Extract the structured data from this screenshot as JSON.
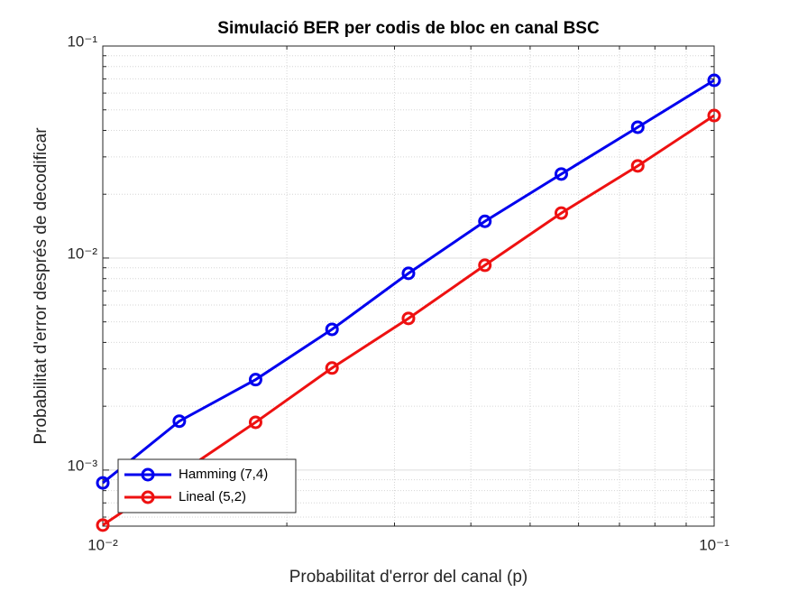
{
  "chart_data": {
    "type": "line",
    "title": "Simulació BER per codis de bloc en canal BSC",
    "x_label": "Probabilitat d'error del canal (p)",
    "y_label": "Probabilitat d'error després de decodificar",
    "x": [
      0.01,
      0.01334,
      0.01778,
      0.02371,
      0.03162,
      0.04217,
      0.05623,
      0.07499,
      0.1
    ],
    "series": [
      {
        "name": "Hamming (7,4)",
        "color": "#0000ee",
        "values": [
          0.00087,
          0.0017,
          0.00267,
          0.00461,
          0.00847,
          0.0149,
          0.0249,
          0.0414,
          0.0689
        ]
      },
      {
        "name": "Lineal (5,2)",
        "color": "#ee1111",
        "values": [
          0.00055,
          0.00096,
          0.00168,
          0.00303,
          0.00519,
          0.00925,
          0.0163,
          0.0272,
          0.047
        ]
      }
    ],
    "xlim": [
      0.01,
      0.1
    ],
    "ylim": [
      0.000544,
      0.1
    ],
    "xticks": [
      {
        "value": 0.01,
        "label": "10⁻²"
      },
      {
        "value": 0.1,
        "label": "10⁻¹"
      }
    ],
    "yticks": [
      {
        "value": 0.001,
        "label": "10⁻³"
      },
      {
        "value": 0.01,
        "label": "10⁻²"
      },
      {
        "value": 0.1,
        "label": "10⁻¹"
      }
    ],
    "log_x": true,
    "log_y": true,
    "grid": true,
    "minor_grid": true,
    "legend": "southwest"
  }
}
